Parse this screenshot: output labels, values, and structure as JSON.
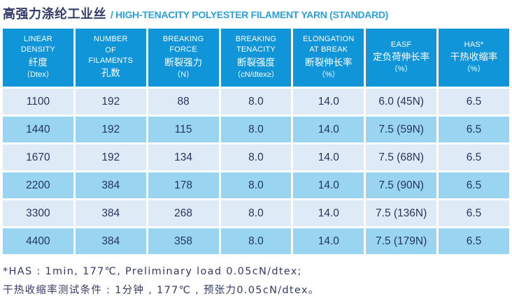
{
  "title": {
    "zh": "高强力涤纶工业丝",
    "en": "/ HIGH-TENACITY POLYESTER FILAMENT YARN (STANDARD)"
  },
  "table": {
    "headers": [
      {
        "key": "linear-density",
        "lines": [
          "LINEAR",
          "DENSITY",
          "纤度",
          "（Dtex）"
        ]
      },
      {
        "key": "number-of-filaments",
        "lines": [
          "NUMBER",
          "OF",
          "FILAMENTS",
          "孔数"
        ]
      },
      {
        "key": "breaking-force",
        "lines": [
          "BREAKING",
          "FORCE",
          "断裂强力",
          "（N）"
        ]
      },
      {
        "key": "breaking-tenacity",
        "lines": [
          "BREAKING",
          "TENACITY",
          "断裂强度",
          "（cN/dtex≥）"
        ]
      },
      {
        "key": "elongation-at-break",
        "lines": [
          "ELONGATION",
          "AT BREAK",
          "断裂伸长率",
          "（%）"
        ]
      },
      {
        "key": "easf",
        "lines": [
          "EASF",
          "定负荷伸长率",
          "（%）"
        ]
      },
      {
        "key": "has",
        "lines": [
          "HAS*",
          "干热收缩率",
          "（%）"
        ]
      }
    ],
    "rows": [
      [
        "1100",
        "192",
        "88",
        "8.0",
        "14.0",
        "6.0 (45N)",
        "6.5"
      ],
      [
        "1440",
        "192",
        "115",
        "8.0",
        "14.0",
        "7.5 (59N)",
        "6.5"
      ],
      [
        "1670",
        "192",
        "134",
        "8.0",
        "14.0",
        "7.5 (68N)",
        "6.5"
      ],
      [
        "2200",
        "384",
        "178",
        "8.0",
        "14.0",
        "7.5 (90N)",
        "6.5"
      ],
      [
        "3300",
        "384",
        "268",
        "8.0",
        "14.0",
        "7.5 (136N)",
        "6.5"
      ],
      [
        "4400",
        "384",
        "358",
        "8.0",
        "14.0",
        "7.5 (179N)",
        "6.5"
      ]
    ]
  },
  "footnotes": [
    "*HAS : 1min, 177℃, Preliminary load 0.05cN/dtex;",
    "干热收缩率测试条件 : 1分钟 , 177℃ , 预张力0.05cN/dtex。"
  ],
  "colors": {
    "header_bg": "#1095d8",
    "row_light": "#dfeaf7",
    "row_alternate": "#99d5f1",
    "cell_text": "#24355f",
    "title_zh": "#333c68",
    "title_en": "#2ba0d9",
    "footnote_text": "#333a66"
  }
}
